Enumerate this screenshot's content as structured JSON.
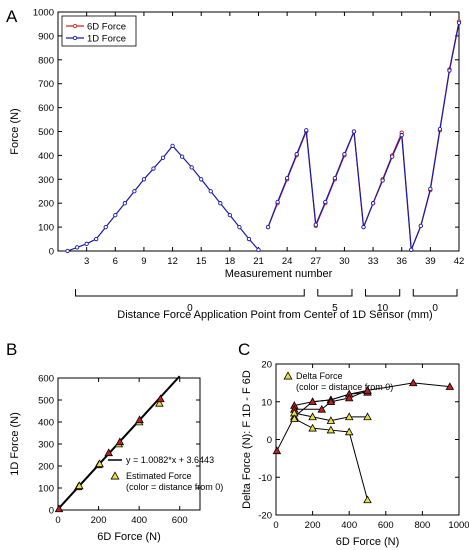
{
  "panel_labels": {
    "a": "A",
    "b": "B",
    "c": "C"
  },
  "colors": {
    "six_d": "#d42020",
    "one_d": "#1a1aa8",
    "fit": "#000000",
    "marker_fill": "#e8e040",
    "marker_red": "#c02020"
  },
  "chart_data": [
    {
      "id": "A",
      "type": "line",
      "xlabel": "Measurement number",
      "ylabel": "Force (N)",
      "xlim": [
        0,
        42
      ],
      "ylim": [
        0,
        1000
      ],
      "xticks": [
        3,
        6,
        9,
        12,
        15,
        18,
        21,
        24,
        27,
        30,
        33,
        36,
        39,
        42
      ],
      "yticks": [
        0,
        100,
        200,
        300,
        400,
        500,
        600,
        700,
        800,
        900,
        1000
      ],
      "series": [
        {
          "name": "6D Force",
          "segments": [
            [
              [
                22,
                100
              ],
              [
                23,
                200
              ],
              [
                24,
                300
              ],
              [
                25,
                400
              ],
              [
                26,
                500
              ],
              [
                27,
                105
              ],
              [
                28,
                200
              ],
              [
                29,
                300
              ],
              [
                30,
                400
              ],
              [
                31,
                500
              ],
              [
                32,
                100
              ],
              [
                33,
                200
              ],
              [
                34,
                300
              ],
              [
                35,
                400
              ],
              [
                36,
                495
              ],
              [
                37,
                5
              ],
              [
                38,
                105
              ],
              [
                39,
                255
              ],
              [
                40,
                505
              ],
              [
                41,
                760
              ],
              [
                42,
                960
              ]
            ]
          ]
        },
        {
          "name": "1D Force",
          "segments": [
            [
              [
                1,
                0
              ],
              [
                2,
                15
              ],
              [
                3,
                30
              ],
              [
                4,
                50
              ],
              [
                5,
                100
              ],
              [
                6,
                150
              ],
              [
                7,
                200
              ],
              [
                8,
                250
              ],
              [
                9,
                300
              ],
              [
                10,
                345
              ],
              [
                11,
                390
              ],
              [
                12,
                440
              ],
              [
                13,
                395
              ],
              [
                14,
                350
              ],
              [
                15,
                300
              ],
              [
                16,
                250
              ],
              [
                17,
                200
              ],
              [
                18,
                150
              ],
              [
                19,
                100
              ],
              [
                20,
                50
              ],
              [
                21,
                5
              ]
            ],
            [
              [
                22,
                100
              ],
              [
                23,
                205
              ],
              [
                24,
                305
              ],
              [
                25,
                405
              ],
              [
                26,
                505
              ],
              [
                27,
                110
              ],
              [
                28,
                205
              ],
              [
                29,
                305
              ],
              [
                30,
                405
              ],
              [
                31,
                500
              ],
              [
                32,
                100
              ],
              [
                33,
                200
              ],
              [
                34,
                295
              ],
              [
                35,
                395
              ],
              [
                36,
                485
              ],
              [
                37,
                5
              ],
              [
                38,
                105
              ],
              [
                39,
                260
              ],
              [
                40,
                510
              ],
              [
                41,
                755
              ],
              [
                42,
                955
              ]
            ]
          ]
        }
      ],
      "distance_axis": {
        "label": "Distance Force Application Point from Center of 1D Sensor (mm)",
        "groups": [
          {
            "label": "0",
            "range": [
              1,
              26
            ]
          },
          {
            "label": "5",
            "range": [
              27,
              31
            ]
          },
          {
            "label": "10",
            "range": [
              32,
              36
            ]
          },
          {
            "label": "0",
            "range": [
              37,
              42
            ]
          }
        ]
      }
    },
    {
      "id": "B",
      "type": "scatter",
      "xlabel": "6D Force (N)",
      "ylabel": "1D Force (N)",
      "xlim": [
        0,
        700
      ],
      "ylim": [
        0,
        600
      ],
      "xticks": [
        0,
        200,
        400,
        600
      ],
      "yticks": [
        0,
        100,
        200,
        300,
        400,
        500,
        600
      ],
      "fit": {
        "label": "y = 1.0082*x + 3.6443",
        "slope": 1.0082,
        "intercept": 3.6443,
        "x_range": [
          0,
          600
        ]
      },
      "legend_marker_label": "Estimated Force",
      "legend_marker_sub": "(color = distance from 0)",
      "points": [
        {
          "x": 5,
          "y": 5,
          "c": "red"
        },
        {
          "x": 100,
          "y": 105,
          "c": "red"
        },
        {
          "x": 105,
          "y": 110,
          "c": "yellow"
        },
        {
          "x": 200,
          "y": 205,
          "c": "red"
        },
        {
          "x": 205,
          "y": 210,
          "c": "yellow"
        },
        {
          "x": 250,
          "y": 260,
          "c": "red"
        },
        {
          "x": 300,
          "y": 300,
          "c": "yellow"
        },
        {
          "x": 305,
          "y": 310,
          "c": "red"
        },
        {
          "x": 400,
          "y": 400,
          "c": "yellow"
        },
        {
          "x": 402,
          "y": 410,
          "c": "red"
        },
        {
          "x": 500,
          "y": 485,
          "c": "yellow"
        },
        {
          "x": 505,
          "y": 505,
          "c": "red"
        }
      ]
    },
    {
      "id": "C",
      "type": "line",
      "xlabel": "6D Force (N)",
      "ylabel": "Delta Force (N): F 1D - F 6D",
      "xlim": [
        0,
        1000
      ],
      "ylim": [
        -20,
        20
      ],
      "xticks": [
        0,
        200,
        400,
        600,
        800,
        1000
      ],
      "yticks": [
        -20,
        -10,
        0,
        10,
        20
      ],
      "legend_marker_label": "Delta Force",
      "legend_marker_sub": "(color = distance from 0)",
      "series": [
        {
          "c": "red",
          "points": [
            [
              5,
              -3
            ],
            [
              100,
              6
            ],
            [
              200,
              10
            ],
            [
              300,
              10.5
            ],
            [
              400,
              12
            ],
            [
              500,
              13
            ],
            [
              750,
              15
            ],
            [
              950,
              14
            ]
          ]
        },
        {
          "c": "red",
          "points": [
            [
              100,
              9
            ],
            [
              200,
              10
            ],
            [
              300,
              10.5
            ],
            [
              400,
              12
            ],
            [
              500,
              12.5
            ]
          ]
        },
        {
          "c": "red",
          "points": [
            [
              100,
              8
            ],
            [
              250,
              8
            ],
            [
              300,
              10
            ],
            [
              400,
              11
            ],
            [
              500,
              13
            ]
          ]
        },
        {
          "c": "yellow",
          "points": [
            [
              100,
              7
            ],
            [
              200,
              6
            ],
            [
              300,
              5
            ],
            [
              400,
              6
            ],
            [
              500,
              6
            ]
          ]
        },
        {
          "c": "yellow",
          "points": [
            [
              100,
              5.5
            ],
            [
              200,
              3
            ],
            [
              300,
              2.5
            ],
            [
              400,
              2
            ],
            [
              500,
              -16
            ]
          ]
        }
      ]
    }
  ]
}
